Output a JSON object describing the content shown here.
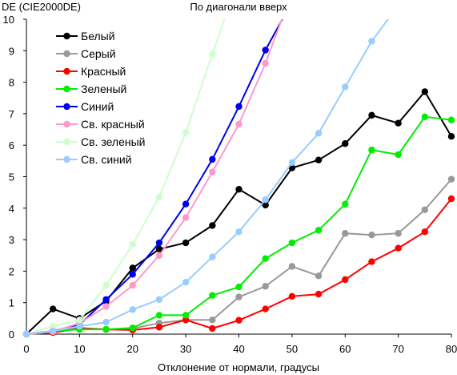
{
  "chart_data": {
    "type": "line",
    "title": "По диагонали вверх",
    "ylabel": "DE (CIE2000DE)",
    "xlabel": "Отклонение от нормали, градусы",
    "xlim": [
      0,
      80
    ],
    "ylim": [
      0,
      10
    ],
    "xticks": [
      "0",
      "10",
      "20",
      "30",
      "40",
      "50",
      "60",
      "70",
      "80"
    ],
    "yticks": [
      "0",
      "1",
      "2",
      "3",
      "4",
      "5",
      "6",
      "7",
      "8",
      "9",
      "10"
    ],
    "grid": false,
    "legend_position": "top-left",
    "series": [
      {
        "name": "Белый",
        "color": "#000000",
        "x": [
          0,
          5,
          10,
          15,
          20,
          25,
          30,
          35,
          40,
          45,
          50,
          55,
          60,
          65,
          70,
          75,
          80
        ],
        "y": [
          0,
          0.8,
          0.5,
          1.05,
          2.1,
          2.7,
          2.9,
          3.45,
          4.6,
          4.1,
          5.28,
          5.53,
          6.05,
          6.95,
          6.7,
          7.7,
          6.28
        ]
      },
      {
        "name": "Серый",
        "color": "#999999",
        "x": [
          0,
          5,
          10,
          15,
          20,
          25,
          30,
          35,
          40,
          45,
          50,
          55,
          60,
          65,
          70,
          75,
          80
        ],
        "y": [
          0,
          0.1,
          0.2,
          0.15,
          0.18,
          0.35,
          0.45,
          0.45,
          1.18,
          1.52,
          2.15,
          1.85,
          3.2,
          3.15,
          3.2,
          3.95,
          4.92
        ]
      },
      {
        "name": "Красный",
        "color": "#ff0000",
        "x": [
          0,
          5,
          10,
          15,
          20,
          25,
          30,
          35,
          40,
          45,
          50,
          55,
          60,
          65,
          70,
          75,
          80
        ],
        "y": [
          0,
          0.05,
          0.18,
          0.15,
          0.13,
          0.22,
          0.45,
          0.18,
          0.44,
          0.8,
          1.2,
          1.27,
          1.73,
          2.3,
          2.73,
          3.25,
          4.3
        ]
      },
      {
        "name": "Зеленый",
        "color": "#00ee00",
        "x": [
          0,
          5,
          10,
          15,
          20,
          25,
          30,
          35,
          40,
          45,
          50,
          55,
          60,
          65,
          70,
          75,
          80
        ],
        "y": [
          0,
          0.1,
          0.15,
          0.15,
          0.2,
          0.6,
          0.6,
          1.23,
          1.5,
          2.4,
          2.9,
          3.3,
          4.13,
          5.85,
          5.7,
          6.9,
          6.8
        ]
      },
      {
        "name": "Синий",
        "color": "#0000ee",
        "x": [
          0,
          5,
          10,
          15,
          20,
          25,
          30,
          35,
          40,
          45,
          48.5
        ],
        "y": [
          0,
          0.1,
          0.3,
          1.1,
          1.9,
          2.9,
          4.13,
          5.55,
          7.23,
          9.02,
          10.1
        ]
      },
      {
        "name": "Св. красный",
        "color": "#ff99cc",
        "x": [
          0,
          5,
          10,
          15,
          20,
          25,
          30,
          35,
          40,
          45,
          48.3
        ],
        "y": [
          0,
          0.08,
          0.35,
          0.88,
          1.55,
          2.5,
          3.7,
          5.15,
          6.67,
          8.6,
          10.1
        ]
      },
      {
        "name": "Св. зеленый",
        "color": "#ccffcc",
        "x": [
          0,
          5,
          10,
          15,
          20,
          25,
          30,
          35,
          37.5
        ],
        "y": [
          0,
          0.25,
          0.45,
          1.55,
          2.85,
          4.35,
          6.4,
          8.9,
          10.1
        ]
      },
      {
        "name": "Св. синий",
        "color": "#99ccff",
        "x": [
          0,
          5,
          10,
          15,
          20,
          25,
          30,
          35,
          40,
          45,
          50,
          55,
          60,
          65,
          68.5
        ],
        "y": [
          0,
          0.1,
          0.25,
          0.38,
          0.78,
          1.1,
          1.65,
          2.45,
          3.25,
          4.27,
          5.45,
          6.38,
          7.85,
          9.3,
          10.1
        ]
      }
    ]
  }
}
